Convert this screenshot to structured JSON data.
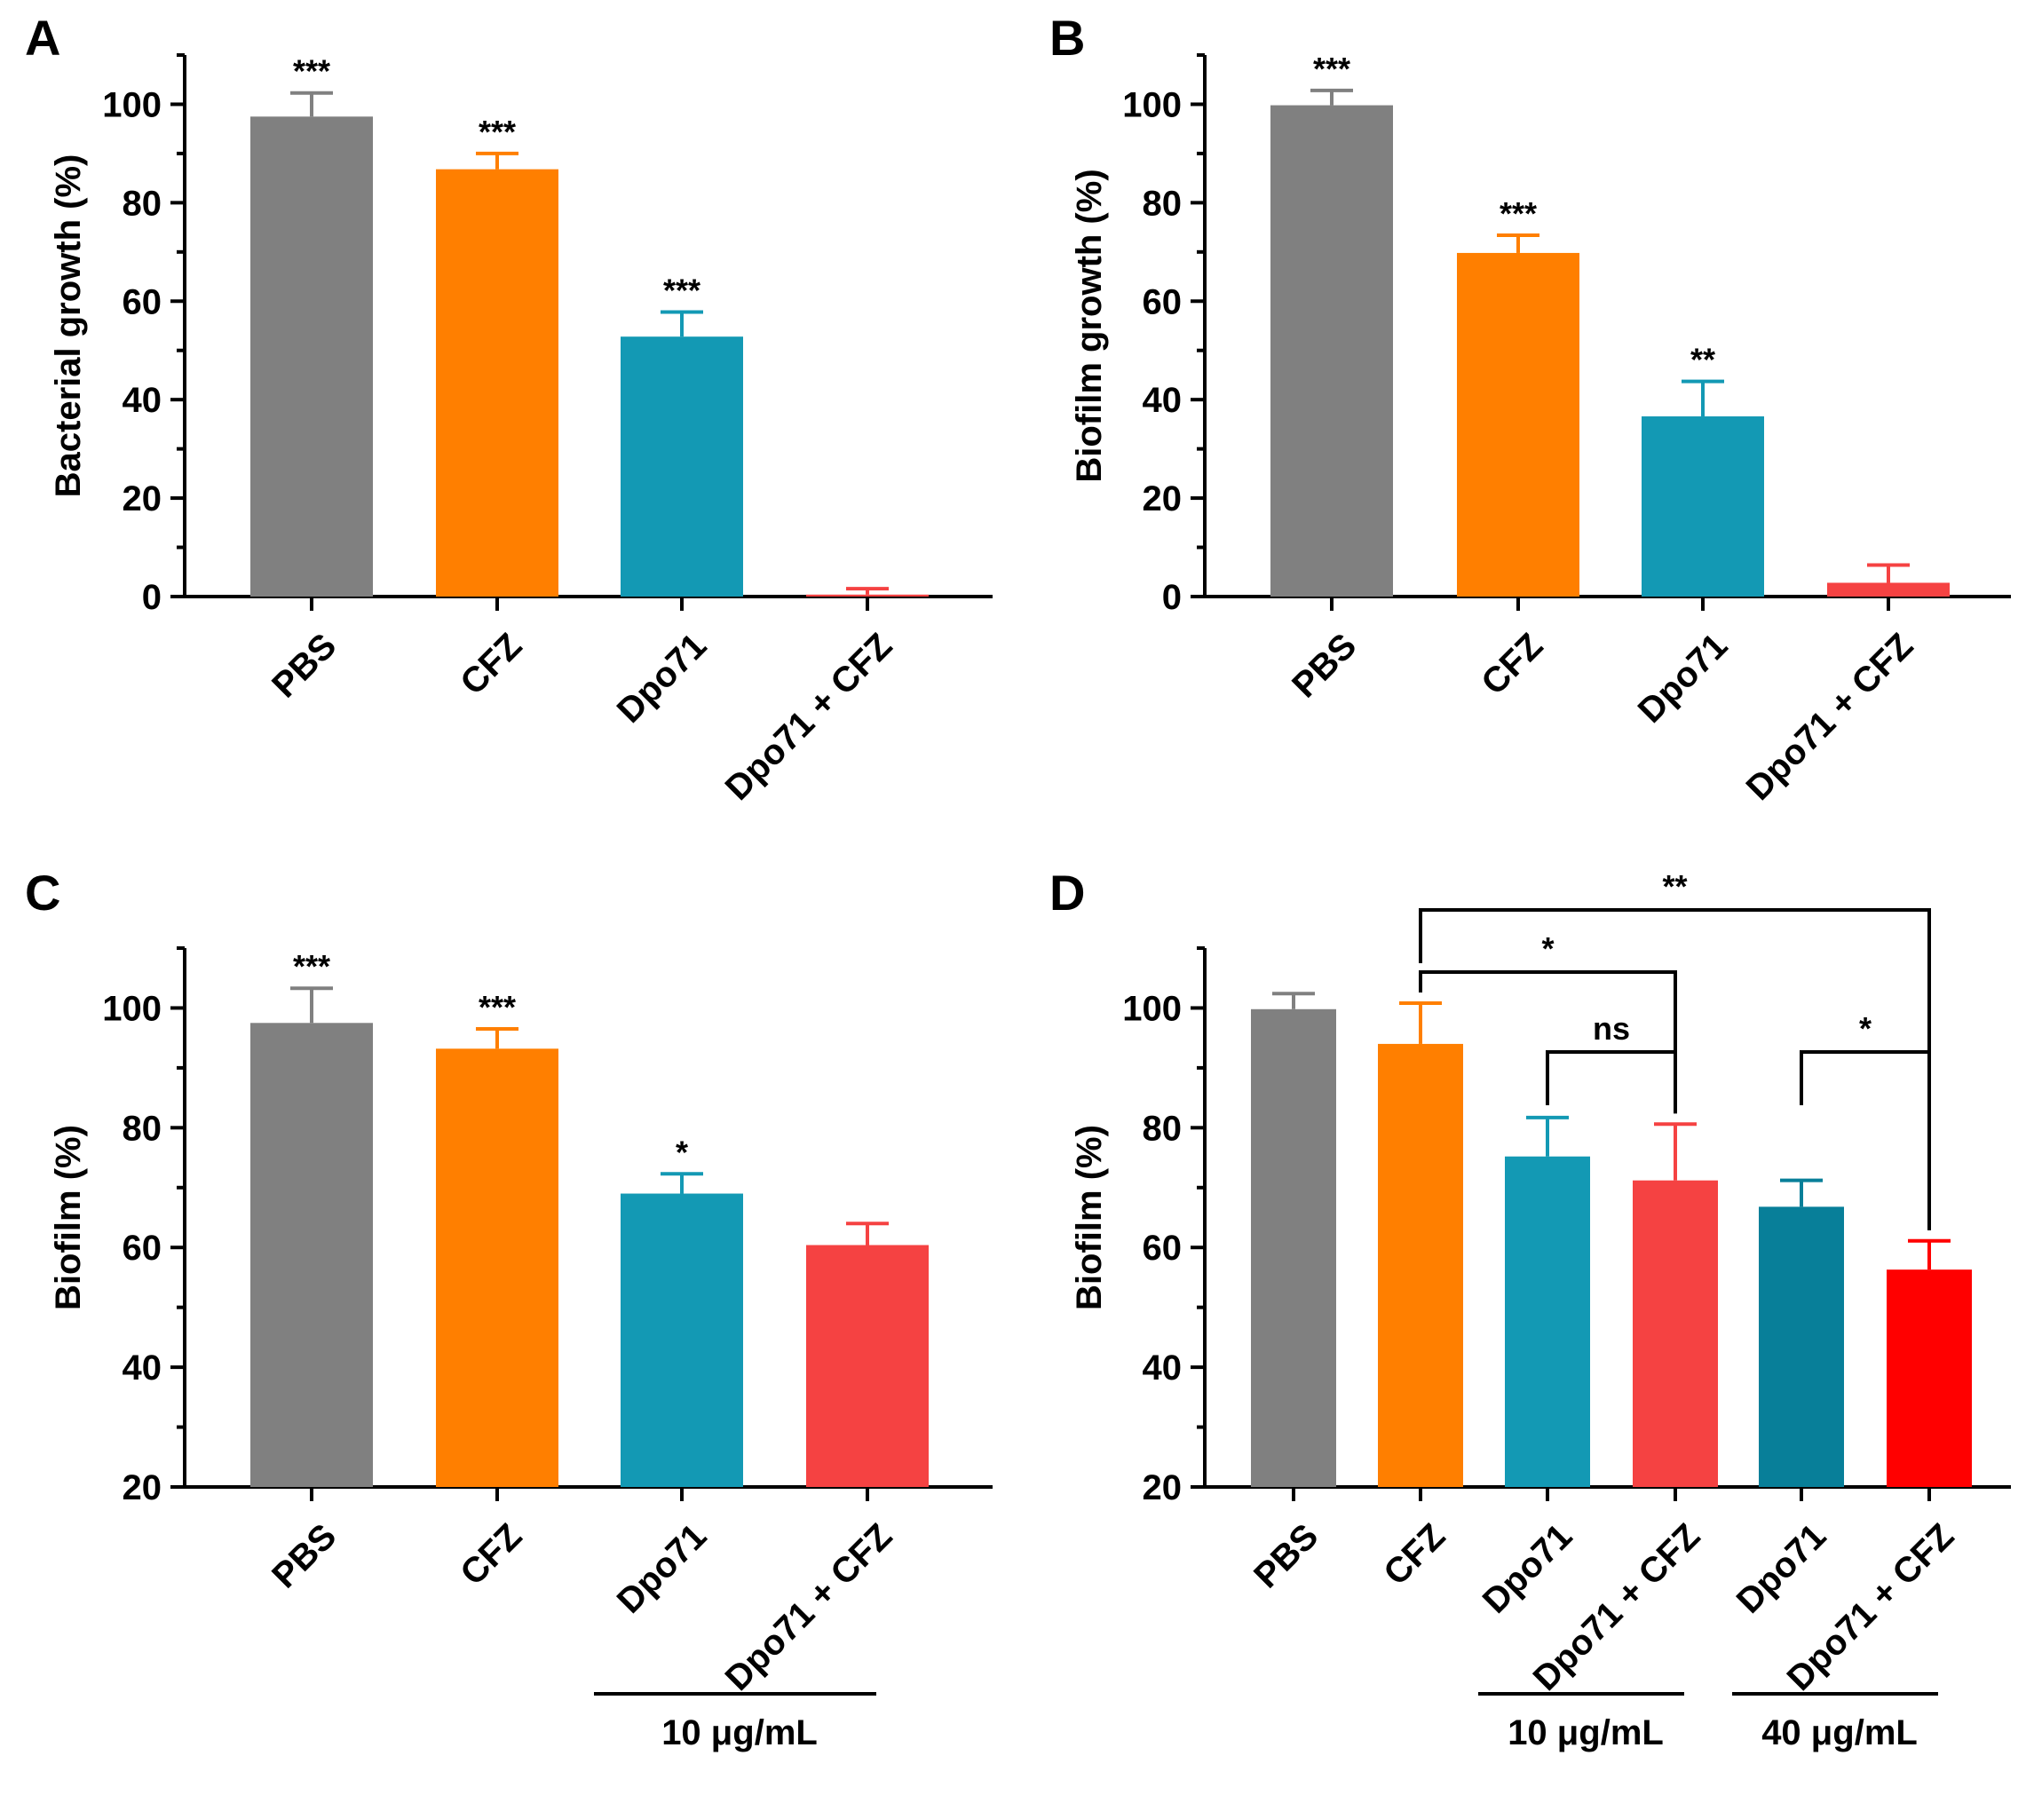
{
  "chart_data": [
    {
      "panel": "A",
      "type": "bar",
      "ylabel": "Bacterial growth (%)",
      "ylim": [
        0,
        110
      ],
      "yticks": [
        0,
        20,
        40,
        60,
        80,
        100
      ],
      "categories": [
        "PBS",
        "CFZ",
        "Dpo71",
        "Dpo71 + CFZ"
      ],
      "values": [
        97.5,
        86.8,
        52.8,
        0.4
      ],
      "errors": [
        4.8,
        3.2,
        5.0,
        1.2
      ],
      "significance": [
        "***",
        "***",
        "***",
        ""
      ],
      "colors": [
        "#808080",
        "#ff7f00",
        "#1399b4",
        "#f54242"
      ],
      "groups": [],
      "brackets": []
    },
    {
      "panel": "B",
      "type": "bar",
      "ylabel": "Biofilm growth (%)",
      "ylim": [
        0,
        110
      ],
      "yticks": [
        0,
        20,
        40,
        60,
        80,
        100
      ],
      "categories": [
        "PBS",
        "CFZ",
        "Dpo71",
        "Dpo71 + CFZ"
      ],
      "values": [
        99.8,
        69.8,
        36.6,
        2.8
      ],
      "errors": [
        3.0,
        3.6,
        7.1,
        3.6
      ],
      "significance": [
        "***",
        "***",
        "**",
        ""
      ],
      "colors": [
        "#808080",
        "#ff7f00",
        "#1399b4",
        "#f54242"
      ],
      "groups": [],
      "brackets": []
    },
    {
      "panel": "C",
      "type": "bar",
      "ylabel": "Biofilm (%)",
      "ylim": [
        20,
        110
      ],
      "yticks": [
        20,
        40,
        60,
        80,
        100
      ],
      "categories": [
        "PBS",
        "CFZ",
        "Dpo71",
        "Dpo71 + CFZ"
      ],
      "values": [
        97.5,
        93.2,
        69.0,
        60.4
      ],
      "errors": [
        5.8,
        3.3,
        3.3,
        3.6
      ],
      "significance": [
        "***",
        "***",
        "*",
        ""
      ],
      "colors": [
        "#808080",
        "#ff7f00",
        "#1399b4",
        "#f54242"
      ],
      "groups": [
        {
          "label": "10 μg/mL",
          "from": 2,
          "to": 3
        }
      ],
      "brackets": []
    },
    {
      "panel": "D",
      "type": "bar",
      "ylabel": "Biofilm (%)",
      "ylim": [
        20,
        110
      ],
      "yticks": [
        20,
        40,
        60,
        80,
        100
      ],
      "categories": [
        "PBS",
        "CFZ",
        "Dpo71",
        "Dpo71 + CFZ",
        "Dpo71",
        "Dpo71 + CFZ"
      ],
      "values": [
        99.8,
        94.0,
        75.2,
        71.2,
        66.8,
        56.3
      ],
      "errors": [
        2.6,
        6.8,
        6.5,
        9.4,
        4.4,
        4.8
      ],
      "significance": [
        "",
        "",
        "",
        "",
        "",
        ""
      ],
      "colors": [
        "#808080",
        "#ff7f00",
        "#1399b4",
        "#f54242",
        "#087f99",
        "#ff0000"
      ],
      "groups": [
        {
          "label": "10 μg/mL",
          "from": 2,
          "to": 3
        },
        {
          "label": "40 μg/mL",
          "from": 4,
          "to": 5
        }
      ],
      "brackets": [
        {
          "from": 2,
          "to": 3,
          "label": "ns",
          "level": 0
        },
        {
          "from": 4,
          "to": 5,
          "label": "*",
          "level": 0
        },
        {
          "from": 1,
          "to": 3,
          "label": "*",
          "level": 1
        },
        {
          "from": 1,
          "to": 5,
          "label": "**",
          "level": 2
        }
      ]
    }
  ]
}
